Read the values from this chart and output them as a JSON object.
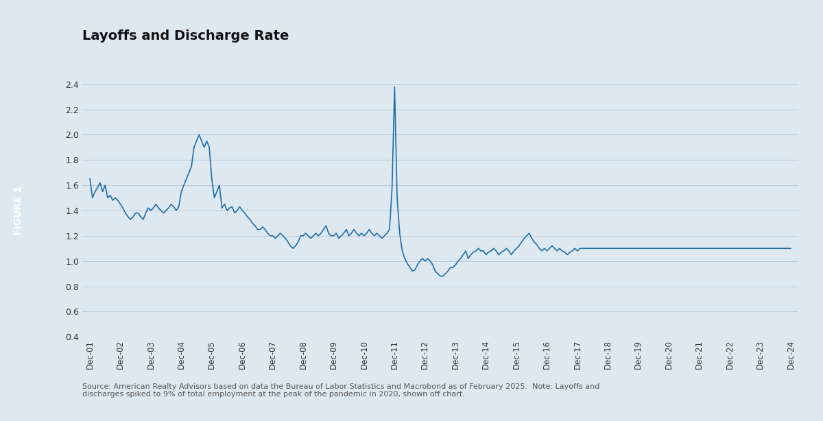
{
  "title": "Layoffs and Discharge Rate",
  "figure_label": "FIGURE 1",
  "line_color": "#1F6EA8",
  "background_color": "#DDE8F0",
  "plot_bg_color": "#DDE8F0",
  "sidebar_color": "#1F5C8B",
  "ylim": [
    0.4,
    2.6
  ],
  "yticks": [
    0.4,
    0.6,
    0.8,
    1.0,
    1.2,
    1.4,
    1.6,
    1.8,
    2.0,
    2.2,
    2.4
  ],
  "source_text": "Source: American Realty Advisors based on data the Bureau of Labor Statistics and Macrobond as of February 2025.  Note: Layoffs and\ndischarges spiked to 9% of total employment at the peak of the pandemic in 2020, shown off chart.",
  "xtick_labels": [
    "Dec-01",
    "Dec-02",
    "Dec-03",
    "Dec-04",
    "Dec-05",
    "Dec-06",
    "Dec-07",
    "Dec-08",
    "Dec-09",
    "Dec-10",
    "Dec-11",
    "Dec-12",
    "Dec-13",
    "Dec-14",
    "Dec-15",
    "Dec-16",
    "Dec-17",
    "Dec-18",
    "Dec-19",
    "Dec-20",
    "Dec-21",
    "Dec-22",
    "Dec-23",
    "Dec-24"
  ],
  "values": [
    1.65,
    1.5,
    1.55,
    1.58,
    1.62,
    1.55,
    1.6,
    1.5,
    1.52,
    1.48,
    1.5,
    1.48,
    1.45,
    1.42,
    1.38,
    1.35,
    1.33,
    1.35,
    1.38,
    1.38,
    1.35,
    1.33,
    1.38,
    1.42,
    1.4,
    1.42,
    1.45,
    1.42,
    1.4,
    1.38,
    1.4,
    1.42,
    1.45,
    1.43,
    1.4,
    1.43,
    1.55,
    1.6,
    1.65,
    1.7,
    1.75,
    1.9,
    1.95,
    2.0,
    1.95,
    1.9,
    1.95,
    1.9,
    1.65,
    1.5,
    1.55,
    1.6,
    1.42,
    1.45,
    1.4,
    1.42,
    1.43,
    1.38,
    1.4,
    1.43,
    1.4,
    1.38,
    1.35,
    1.33,
    1.3,
    1.28,
    1.25,
    1.25,
    1.27,
    1.25,
    1.22,
    1.2,
    1.2,
    1.18,
    1.2,
    1.22,
    1.2,
    1.18,
    1.15,
    1.12,
    1.1,
    1.12,
    1.15,
    1.2,
    1.2,
    1.22,
    1.2,
    1.18,
    1.2,
    1.22,
    1.2,
    1.22,
    1.25,
    1.28,
    1.22,
    1.2,
    1.2,
    1.22,
    1.18,
    1.2,
    1.22,
    1.25,
    1.2,
    1.22,
    1.25,
    1.22,
    1.2,
    1.22,
    1.2,
    1.22,
    1.25,
    1.22,
    1.2,
    1.22,
    1.2,
    1.18,
    1.2,
    1.22,
    1.25,
    1.58,
    2.38,
    1.5,
    1.22,
    1.08,
    1.02,
    0.98,
    0.95,
    0.92,
    0.93,
    0.97,
    1.0,
    1.02,
    1.0,
    1.02,
    1.0,
    0.97,
    0.92,
    0.9,
    0.88,
    0.88,
    0.9,
    0.92,
    0.95,
    0.95,
    0.97,
    1.0,
    1.02,
    1.05,
    1.08,
    1.02,
    1.05,
    1.07,
    1.08,
    1.1,
    1.08,
    1.08,
    1.05,
    1.07,
    1.08,
    1.1,
    1.08,
    1.05,
    1.07,
    1.08,
    1.1,
    1.08,
    1.05,
    1.08,
    1.1,
    1.12,
    1.15,
    1.18,
    1.2,
    1.22,
    1.18,
    1.15,
    1.13,
    1.1,
    1.08,
    1.1,
    1.08,
    1.1,
    1.12,
    1.1,
    1.08,
    1.1,
    1.08,
    1.07,
    1.05,
    1.07,
    1.08,
    1.1,
    1.08,
    1.1,
    1.1,
    1.1,
    1.1,
    1.1,
    1.1,
    1.1,
    1.1,
    1.1,
    1.1,
    1.1
  ]
}
